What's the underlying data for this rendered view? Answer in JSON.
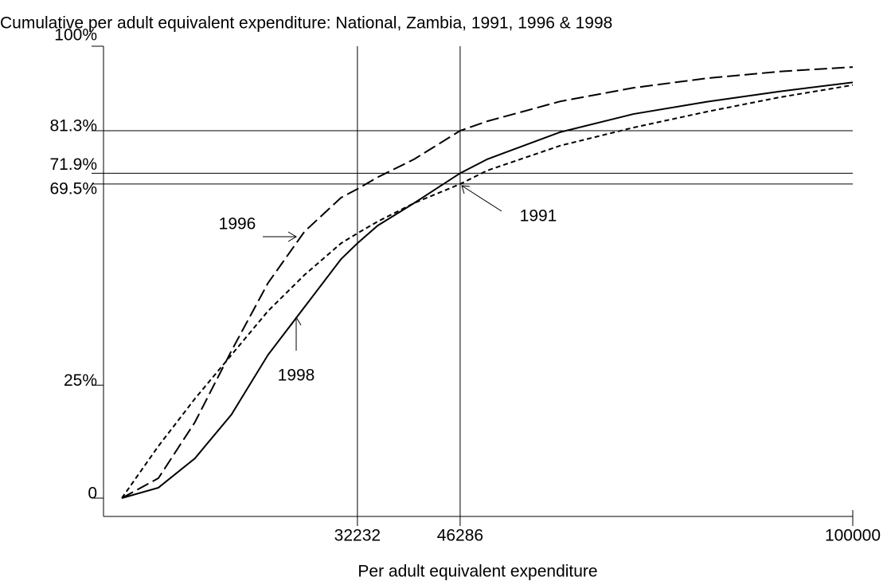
{
  "chart_data": {
    "type": "line",
    "title": "Cumulative per adult equivalent expenditure: National, Zambia, 1991, 1996 & 1998",
    "x_label": "Per adult equivalent expenditure",
    "x": [
      0,
      5000,
      10000,
      15000,
      20000,
      25000,
      30000,
      32232,
      35000,
      40000,
      46286,
      50000,
      60000,
      70000,
      80000,
      90000,
      100000
    ],
    "series": [
      {
        "name": "1991",
        "color": "#000000",
        "dash": "short-dash",
        "values": [
          0,
          11.5,
          22,
          31.7,
          41.4,
          49.4,
          56.4,
          58.6,
          61.2,
          65.3,
          69.5,
          72.5,
          78,
          82,
          85.5,
          88.7,
          91.4
        ]
      },
      {
        "name": "1996",
        "color": "#000000",
        "dash": "long-dash",
        "values": [
          0,
          4.4,
          16.8,
          32.6,
          47.6,
          59,
          66.5,
          68.4,
          71,
          75,
          81.3,
          83.4,
          87.8,
          90.8,
          92.9,
          94.4,
          95.4
        ]
      },
      {
        "name": "1998",
        "color": "#000000",
        "dash": "solid",
        "values": [
          0,
          2.3,
          8.8,
          18.5,
          31.7,
          42.3,
          52.9,
          56.4,
          60.3,
          65.3,
          71.9,
          75,
          81,
          85,
          87.7,
          90,
          92
        ]
      }
    ],
    "xlim": [
      0,
      100000
    ],
    "ylim": [
      0,
      100
    ],
    "xticks": [
      {
        "value": 32232,
        "label": "32232",
        "reference": true
      },
      {
        "value": 46286,
        "label": "46286",
        "reference": true
      },
      100000
    ],
    "yticks": [
      0,
      {
        "value": 25,
        "label": "25%"
      },
      {
        "value": 69.5,
        "label": "69.5%",
        "reference": true
      },
      {
        "value": 71.9,
        "label": "71.9%",
        "reference": true
      },
      {
        "value": 81.3,
        "label": "81.3%",
        "reference": true
      },
      {
        "value": 100,
        "label": "100%"
      }
    ]
  }
}
